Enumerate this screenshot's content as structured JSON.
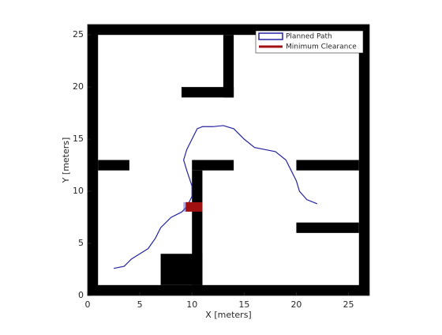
{
  "chart_data": {
    "type": "line",
    "x_label": "X [meters]",
    "y_label": "Y [meters]",
    "xlim": [
      0,
      27
    ],
    "ylim": [
      0,
      26
    ],
    "xticks": [
      0,
      5,
      10,
      15,
      20,
      25
    ],
    "yticks": [
      0,
      5,
      10,
      15,
      20,
      25
    ],
    "legend": "northeast",
    "obstacle_color": "#000000",
    "obstacles": [
      [
        0,
        0,
        1,
        26
      ],
      [
        26,
        0,
        27,
        26
      ],
      [
        0,
        25,
        27,
        26
      ],
      [
        0,
        0,
        27,
        1
      ],
      [
        13,
        19,
        14,
        25
      ],
      [
        9,
        19,
        14,
        20
      ],
      [
        1,
        12,
        4,
        13
      ],
      [
        10,
        12,
        14,
        13
      ],
      [
        10,
        1,
        11,
        12
      ],
      [
        7,
        1,
        11,
        4
      ],
      [
        20,
        12,
        26,
        13
      ],
      [
        20,
        6,
        26,
        7
      ]
    ],
    "series": [
      {
        "name": "Planned Path",
        "color": "#2323a0",
        "x": [
          2.5,
          3.5,
          4.2,
          5,
          5.8,
          6.5,
          7,
          8,
          9,
          9.5,
          10,
          10,
          9.5,
          9.2,
          9.5,
          10,
          10.5,
          11,
          12,
          13,
          14,
          15,
          16,
          17,
          18,
          19,
          19.5,
          20,
          20.3,
          21,
          22
        ],
        "values": [
          2.6,
          2.8,
          3.5,
          4,
          4.5,
          5.5,
          6.5,
          7.5,
          8,
          8.5,
          9.5,
          10.5,
          12,
          13,
          14,
          15,
          16,
          16.2,
          16.2,
          16.3,
          16,
          15,
          14.2,
          14,
          13.8,
          13,
          12,
          11,
          10,
          9.2,
          8.8
        ]
      },
      {
        "name": "Minimum Clearance",
        "color": "#a01010",
        "x": [
          9.4,
          11
        ],
        "values": [
          8.5,
          8.5
        ]
      }
    ]
  }
}
